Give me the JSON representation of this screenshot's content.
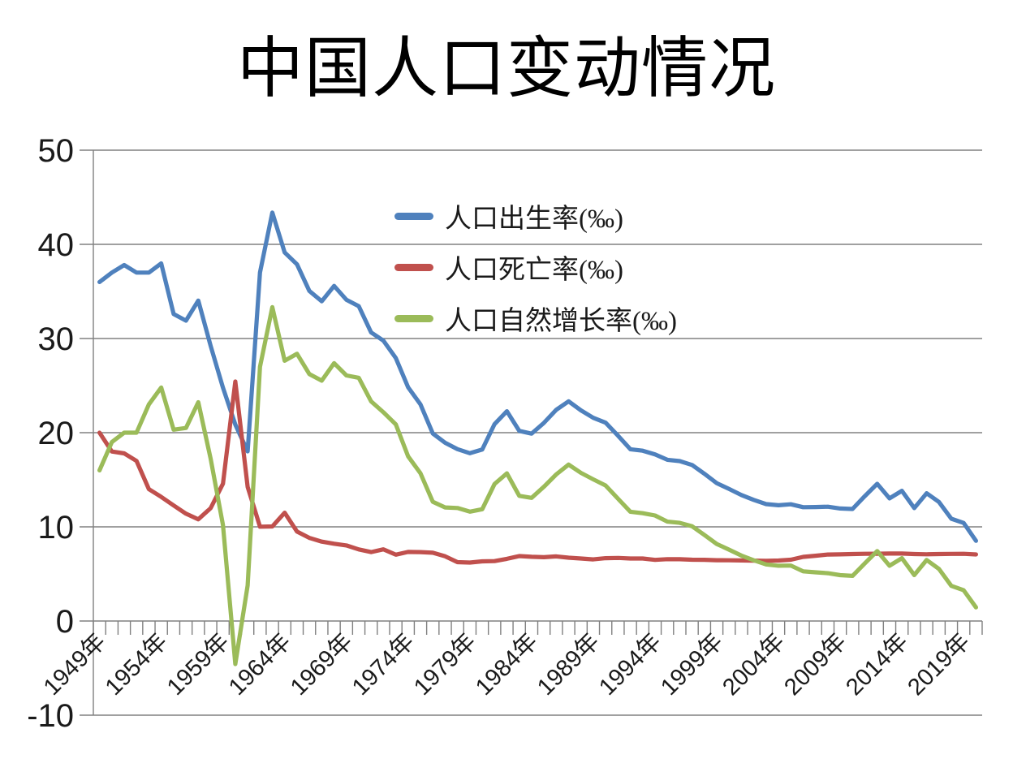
{
  "title": "中国人口变动情况",
  "chart_data": {
    "type": "line",
    "title": "中国人口变动情况",
    "xlabel": "",
    "ylabel": "",
    "ylim": [
      -10,
      50
    ],
    "ytick_step": 10,
    "y_tick_labels": [
      "-10",
      "0",
      "10",
      "20",
      "30",
      "40",
      "50"
    ],
    "grid": true,
    "legend_position": "inside-top-center",
    "axis_color": "#808080",
    "text_color": "#1a1a1a",
    "x_label_suffix": "年",
    "x_label_every": 5,
    "visible_x_labels": [
      "1949年",
      "1954年",
      "1959年",
      "1964年",
      "1969年",
      "1974年",
      "1979年",
      "1984年",
      "1989年",
      "1994年",
      "1999年",
      "2004年",
      "2009年",
      "2014年",
      "2019年"
    ],
    "years": [
      1949,
      1950,
      1951,
      1952,
      1953,
      1954,
      1955,
      1956,
      1957,
      1958,
      1959,
      1960,
      1961,
      1962,
      1963,
      1964,
      1965,
      1966,
      1967,
      1968,
      1969,
      1970,
      1971,
      1972,
      1973,
      1974,
      1975,
      1976,
      1977,
      1978,
      1979,
      1980,
      1981,
      1982,
      1983,
      1984,
      1985,
      1986,
      1987,
      1988,
      1989,
      1990,
      1991,
      1992,
      1993,
      1994,
      1995,
      1996,
      1997,
      1998,
      1999,
      2000,
      2001,
      2002,
      2003,
      2004,
      2005,
      2006,
      2007,
      2008,
      2009,
      2010,
      2011,
      2012,
      2013,
      2014,
      2015,
      2016,
      2017,
      2018,
      2019,
      2020
    ],
    "series": [
      {
        "name": "人口出生率(‰)",
        "color": "#4F81BD",
        "values": [
          36.0,
          37.0,
          37.8,
          37.0,
          37.0,
          37.97,
          32.6,
          31.9,
          34.03,
          29.22,
          24.78,
          20.86,
          18.02,
          37.01,
          43.37,
          39.14,
          37.88,
          35.05,
          33.96,
          35.59,
          34.11,
          33.43,
          30.65,
          29.77,
          27.93,
          24.82,
          23.01,
          19.91,
          18.93,
          18.25,
          17.82,
          18.21,
          20.91,
          22.28,
          20.19,
          19.9,
          21.04,
          22.43,
          23.33,
          22.37,
          21.58,
          21.06,
          19.68,
          18.24,
          18.09,
          17.7,
          17.12,
          16.98,
          16.57,
          15.64,
          14.64,
          14.03,
          13.38,
          12.86,
          12.41,
          12.29,
          12.4,
          12.09,
          12.1,
          12.14,
          11.95,
          11.9,
          13.27,
          14.57,
          13.03,
          13.83,
          11.99,
          13.57,
          12.64,
          10.86,
          10.41,
          8.52
        ]
      },
      {
        "name": "人口死亡率(‰)",
        "color": "#C0504D",
        "values": [
          20.0,
          18.0,
          17.8,
          17.0,
          14.0,
          13.18,
          12.28,
          11.4,
          10.8,
          11.98,
          14.59,
          25.43,
          14.24,
          10.02,
          10.04,
          11.5,
          9.5,
          8.83,
          8.43,
          8.21,
          8.03,
          7.6,
          7.32,
          7.61,
          7.04,
          7.34,
          7.32,
          7.25,
          6.87,
          6.25,
          6.21,
          6.34,
          6.36,
          6.6,
          6.9,
          6.82,
          6.78,
          6.86,
          6.72,
          6.64,
          6.54,
          6.67,
          6.7,
          6.64,
          6.64,
          6.49,
          6.57,
          6.56,
          6.51,
          6.5,
          6.46,
          6.45,
          6.43,
          6.41,
          6.4,
          6.42,
          6.51,
          6.81,
          6.93,
          7.06,
          7.08,
          7.11,
          7.14,
          7.15,
          7.16,
          7.16,
          7.11,
          7.09,
          7.11,
          7.13,
          7.14,
          7.07
        ]
      },
      {
        "name": "人口自然增长率(‰)",
        "color": "#9BBB59",
        "values": [
          16.0,
          19.0,
          20.0,
          20.0,
          23.0,
          24.79,
          20.32,
          20.5,
          23.23,
          17.24,
          10.19,
          -4.57,
          3.78,
          26.99,
          33.33,
          27.64,
          28.38,
          26.22,
          25.53,
          27.38,
          26.08,
          25.83,
          23.33,
          22.16,
          20.89,
          17.48,
          15.69,
          12.66,
          12.06,
          12.0,
          11.61,
          11.87,
          14.55,
          15.68,
          13.29,
          13.08,
          14.26,
          15.57,
          16.61,
          15.73,
          15.04,
          14.39,
          12.98,
          11.6,
          11.45,
          11.21,
          10.55,
          10.42,
          10.06,
          9.14,
          8.18,
          7.58,
          6.95,
          6.45,
          6.01,
          5.87,
          5.89,
          5.28,
          5.17,
          5.08,
          4.87,
          4.79,
          6.13,
          7.43,
          5.87,
          6.67,
          4.88,
          6.48,
          5.53,
          3.73,
          3.27,
          1.45
        ]
      }
    ]
  }
}
